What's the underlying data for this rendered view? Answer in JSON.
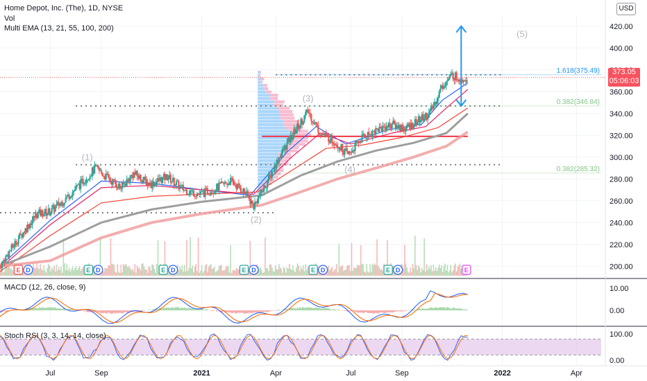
{
  "header": {
    "title": "Home Depot, Inc. (The), 1D, NYSE",
    "vol": "Vol",
    "ema": "Multi EMA (13, 21, 55, 100, 200)",
    "currency": "USD"
  },
  "price": {
    "last": "373.05",
    "countdown": "05:06:03"
  },
  "panes": {
    "macd_label": "MACD (12, 26, close, 9)",
    "stoch_label": "Stoch RSI (3, 3, 14, 14, close)"
  },
  "colors": {
    "up": "#26a69a",
    "down": "#ef5350",
    "ema13": "#2962ff",
    "ema21": "#e91e63",
    "ema55": "#f44336",
    "ema100": "#9e9e9e",
    "ema200": "#ef9a9a",
    "arrow": "#2196f3",
    "support": "#f23645",
    "stoch_band": "#e1bee7"
  },
  "chart_data": {
    "type": "candlestick",
    "x_range": [
      "2020-05-01",
      "2022-05-01"
    ],
    "y_axis": {
      "ylim": [
        190,
        430
      ],
      "ticks": [
        "420.00",
        "400.00",
        "380.00",
        "360.00",
        "340.00",
        "320.00",
        "300.00",
        "280.00",
        "260.00",
        "240.00",
        "220.00",
        "200.00"
      ]
    },
    "x_ticks": [
      {
        "label": "Jul",
        "bold": false
      },
      {
        "label": "Sep",
        "bold": false
      },
      {
        "label": "2021",
        "bold": true
      },
      {
        "label": "Apr",
        "bold": false
      },
      {
        "label": "Jul",
        "bold": false
      },
      {
        "label": "Sep",
        "bold": false
      },
      {
        "label": "2022",
        "bold": true
      },
      {
        "label": "Apr",
        "bold": false
      }
    ],
    "close_path": [
      [
        "2020-05-01",
        200
      ],
      [
        "2020-05-20",
        222
      ],
      [
        "2020-06-15",
        248
      ],
      [
        "2020-07-01",
        250
      ],
      [
        "2020-07-20",
        262
      ],
      [
        "2020-08-10",
        278
      ],
      [
        "2020-08-25",
        290
      ],
      [
        "2020-09-10",
        280
      ],
      [
        "2020-09-25",
        272
      ],
      [
        "2020-10-10",
        285
      ],
      [
        "2020-10-30",
        275
      ],
      [
        "2020-11-20",
        282
      ],
      [
        "2020-12-10",
        270
      ],
      [
        "2020-12-31",
        266
      ],
      [
        "2021-01-20",
        272
      ],
      [
        "2021-02-05",
        278
      ],
      [
        "2021-02-22",
        268
      ],
      [
        "2021-03-05",
        255
      ],
      [
        "2021-03-20",
        275
      ],
      [
        "2021-04-05",
        300
      ],
      [
        "2021-04-25",
        325
      ],
      [
        "2021-05-10",
        342
      ],
      [
        "2021-05-25",
        322
      ],
      [
        "2021-06-10",
        315
      ],
      [
        "2021-06-28",
        302
      ],
      [
        "2021-07-15",
        318
      ],
      [
        "2021-08-01",
        325
      ],
      [
        "2021-08-20",
        330
      ],
      [
        "2021-09-05",
        326
      ],
      [
        "2021-09-20",
        333
      ],
      [
        "2021-10-05",
        340
      ],
      [
        "2021-10-20",
        365
      ],
      [
        "2021-11-01",
        375
      ],
      [
        "2021-11-12",
        372
      ],
      [
        "2021-11-20",
        373
      ]
    ],
    "ema_series": [
      {
        "key": "ema13",
        "points": [
          [
            "2020-05-01",
            200
          ],
          [
            "2020-07-01",
            242
          ],
          [
            "2020-09-01",
            278
          ],
          [
            "2020-11-01",
            276
          ],
          [
            "2021-01-01",
            270
          ],
          [
            "2021-03-01",
            265
          ],
          [
            "2021-04-15",
            305
          ],
          [
            "2021-05-20",
            328
          ],
          [
            "2021-06-25",
            312
          ],
          [
            "2021-08-15",
            325
          ],
          [
            "2021-09-25",
            330
          ],
          [
            "2021-10-20",
            352
          ],
          [
            "2021-11-20",
            368
          ]
        ]
      },
      {
        "key": "ema21",
        "points": [
          [
            "2020-05-01",
            198
          ],
          [
            "2020-07-01",
            238
          ],
          [
            "2020-09-01",
            272
          ],
          [
            "2020-11-01",
            274
          ],
          [
            "2021-01-01",
            270
          ],
          [
            "2021-03-05",
            266
          ],
          [
            "2021-04-20",
            300
          ],
          [
            "2021-05-25",
            322
          ],
          [
            "2021-07-01",
            312
          ],
          [
            "2021-08-20",
            322
          ],
          [
            "2021-09-30",
            328
          ],
          [
            "2021-10-25",
            345
          ],
          [
            "2021-11-20",
            362
          ]
        ]
      },
      {
        "key": "ema55",
        "points": [
          [
            "2020-05-01",
            195
          ],
          [
            "2020-07-01",
            228
          ],
          [
            "2020-09-01",
            258
          ],
          [
            "2020-11-01",
            264
          ],
          [
            "2021-01-01",
            266
          ],
          [
            "2021-03-10",
            268
          ],
          [
            "2021-04-25",
            290
          ],
          [
            "2021-06-01",
            308
          ],
          [
            "2021-07-15",
            311
          ],
          [
            "2021-09-01",
            318
          ],
          [
            "2021-10-15",
            327
          ],
          [
            "2021-11-20",
            345
          ]
        ]
      },
      {
        "key": "ema100",
        "points": [
          [
            "2020-05-01",
            200
          ],
          [
            "2020-07-01",
            218
          ],
          [
            "2020-09-01",
            240
          ],
          [
            "2020-11-01",
            252
          ],
          [
            "2021-01-01",
            259
          ],
          [
            "2021-03-15",
            265
          ],
          [
            "2021-05-01",
            283
          ],
          [
            "2021-06-15",
            296
          ],
          [
            "2021-08-01",
            306
          ],
          [
            "2021-09-15",
            313
          ],
          [
            "2021-10-25",
            322
          ],
          [
            "2021-11-20",
            340
          ]
        ]
      },
      {
        "key": "ema200",
        "points": [
          [
            "2020-05-01",
            200
          ],
          [
            "2020-07-01",
            205
          ],
          [
            "2020-09-01",
            226
          ],
          [
            "2020-11-01",
            240
          ],
          [
            "2021-01-01",
            248
          ],
          [
            "2021-03-15",
            256
          ],
          [
            "2021-05-01",
            268
          ],
          [
            "2021-06-15",
            280
          ],
          [
            "2021-08-01",
            290
          ],
          [
            "2021-09-15",
            300
          ],
          [
            "2021-10-25",
            310
          ],
          [
            "2021-11-20",
            323
          ]
        ]
      }
    ],
    "horizontal_levels": [
      {
        "start": "2021-04-01",
        "end": "2021-12-31",
        "price": 375.49,
        "label": "1.618(375.49)",
        "style": "dotted"
      },
      {
        "start": "2020-08-01",
        "end": "2021-12-31",
        "price": 346.84,
        "label": "0.382(346.84)",
        "style": "dotted"
      },
      {
        "start": "2020-08-01",
        "end": "2021-12-31",
        "price": 293,
        "label": "",
        "style": "dotted"
      },
      {
        "start": "2020-05-01",
        "end": "2021-03-31",
        "price": 249,
        "label": "",
        "style": "dotted"
      },
      {
        "start": "2021-03-15",
        "end": "2021-11-20",
        "price": 319,
        "label": "",
        "style": "solid"
      }
    ],
    "fib_labels_right": [
      {
        "price": 375.49,
        "label": "1.618(375.49)",
        "color": "#2196f3"
      },
      {
        "price": 346.84,
        "label": "0.382(346.84)",
        "color": "#81c784"
      },
      {
        "price": 285.32,
        "label": "0.382(285.32)",
        "color": "#81c784"
      }
    ],
    "waves": [
      {
        "label": "(1)",
        "date": "2020-08-15",
        "price": 297
      },
      {
        "label": "(2)",
        "date": "2021-03-08",
        "price": 240
      },
      {
        "label": "(3)",
        "date": "2021-05-10",
        "price": 351
      },
      {
        "label": "(4)",
        "date": "2021-06-30",
        "price": 286
      },
      {
        "label": "(5)",
        "date": "2022-01-25",
        "price": 410
      }
    ],
    "projection_arrow": {
      "date": "2021-11-12",
      "from": 346.84,
      "to": 420
    },
    "volume_profile": {
      "date": "2021-03-10",
      "low": 265,
      "high": 378
    },
    "events": [
      {
        "date": "2020-05-25",
        "labels": [
          "E",
          "D"
        ]
      },
      {
        "date": "2020-08-18",
        "labels": [
          "E",
          "D"
        ]
      },
      {
        "date": "2020-11-17",
        "labels": [
          "E",
          "D"
        ]
      },
      {
        "date": "2021-02-23",
        "labels": [
          "E",
          "D"
        ]
      },
      {
        "date": "2021-05-18",
        "labels": [
          "E",
          "D"
        ]
      },
      {
        "date": "2021-08-17",
        "labels": [
          "E",
          "D"
        ]
      },
      {
        "date": "2021-11-20",
        "labels": [
          "E"
        ]
      }
    ],
    "macd": {
      "ylim": [
        -15,
        15
      ],
      "ticks": [
        "10.00",
        "0.00"
      ]
    },
    "stoch_rsi": {
      "ylim": [
        -5,
        105
      ],
      "ticks": [
        "100.00",
        "0.00"
      ],
      "band": [
        20,
        80
      ]
    }
  }
}
